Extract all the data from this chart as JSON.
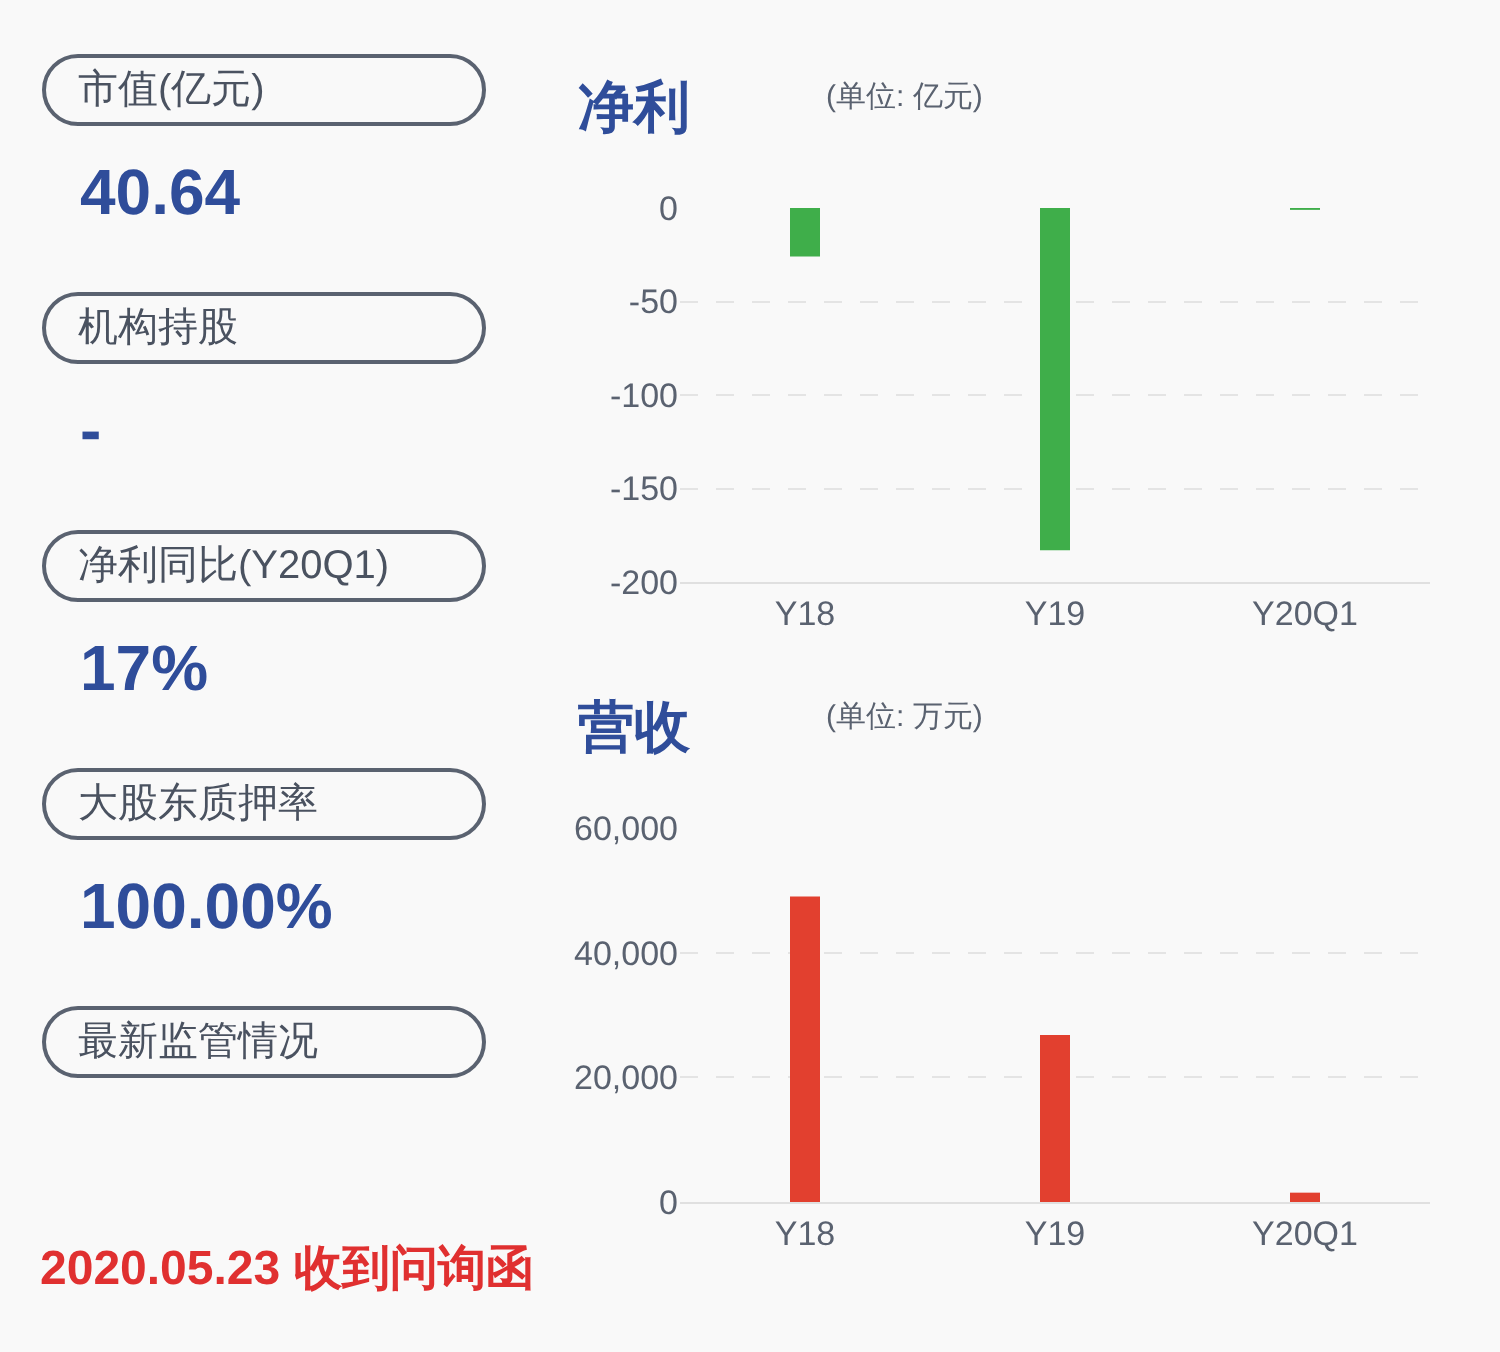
{
  "chart_data": [
    {
      "type": "other",
      "annotations": [
        "市值(亿元)",
        "40.64",
        "机构持股",
        "-",
        "净利同比(Y20Q1)",
        "17%",
        "大股东质押率",
        "100.00%",
        "最新监管情况",
        "2020.05.23 收到问询函"
      ]
    },
    {
      "type": "bar",
      "title": "净利",
      "subtitle": "(单位: 亿元)",
      "categories": [
        "Y18",
        "Y19",
        "Y20Q1"
      ],
      "values": [
        -26,
        -183,
        -1
      ],
      "color": "#3fae4a",
      "ylim": [
        -200,
        0
      ],
      "yticks": [
        -200,
        -150,
        -100,
        -50,
        0
      ],
      "grid": "y"
    },
    {
      "type": "bar",
      "title": "营收",
      "subtitle": "(单位: 万元)",
      "categories": [
        "Y18",
        "Y19",
        "Y20Q1"
      ],
      "values": [
        49000,
        26800,
        1500
      ],
      "color": "#e2402f",
      "ylim": [
        0,
        60000
      ],
      "yticks": [
        {
          "value": 0,
          "label": "0"
        },
        {
          "value": 20000,
          "label": "20,000"
        },
        {
          "value": 40000,
          "label": "40,000"
        },
        {
          "value": 60000,
          "label": "60,000"
        }
      ],
      "grid": "y"
    }
  ]
}
